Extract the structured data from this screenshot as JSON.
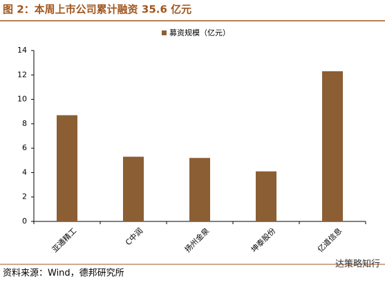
{
  "chart_data": {
    "type": "bar",
    "title": "图 2：本周上市公司累计融资 35.6 亿元",
    "categories": [
      "亚通精工",
      "C中润",
      "扬州金泉",
      "坤泰股份",
      "亿道信息"
    ],
    "series": [
      {
        "name": "募资规模（亿元）",
        "color": "#8b5e34",
        "values": [
          8.7,
          5.3,
          5.2,
          4.1,
          12.3
        ]
      }
    ],
    "ylim": [
      0,
      14
    ],
    "yticks": [
      0,
      2,
      4,
      6,
      8,
      10,
      12,
      14
    ],
    "grid": false,
    "legend": "top",
    "source": "资料来源：Wind，德邦研究所",
    "watermark": "达策略知行"
  }
}
